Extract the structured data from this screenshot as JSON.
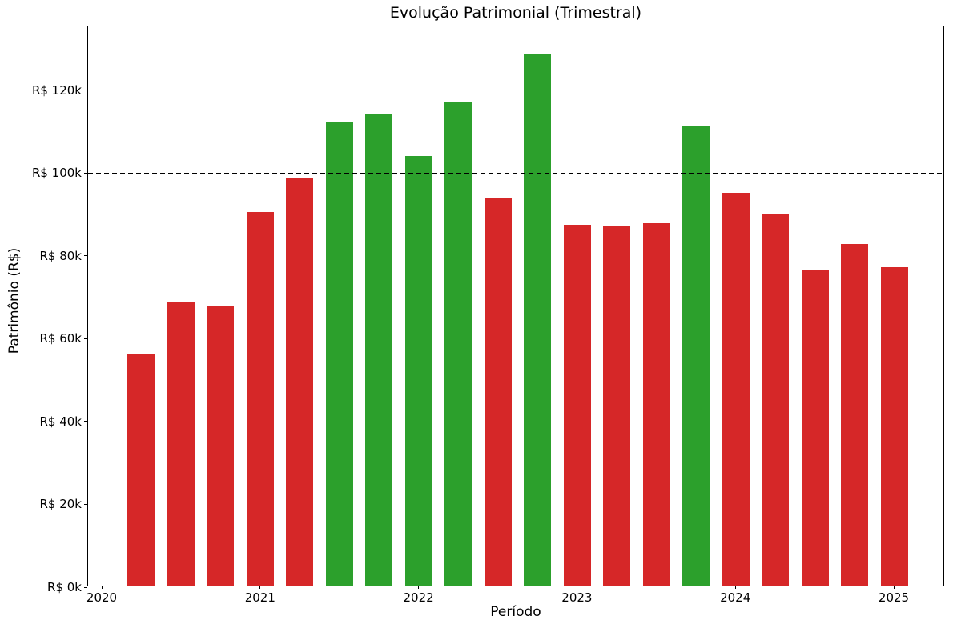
{
  "chart_data": {
    "type": "bar",
    "title": "Evolução Patrimonial (Trimestral)",
    "xlabel": "Período",
    "ylabel": "Patrimônio (R$)",
    "categories": [
      "2020-Q2",
      "2020-Q3",
      "2020-Q4",
      "2021-Q1",
      "2021-Q2",
      "2021-Q3",
      "2021-Q4",
      "2022-Q1",
      "2022-Q2",
      "2022-Q3",
      "2022-Q4",
      "2023-Q1",
      "2023-Q2",
      "2023-Q3",
      "2023-Q4",
      "2024-Q1",
      "2024-Q2",
      "2024-Q3",
      "2024-Q4",
      "2025-Q1"
    ],
    "values": [
      56000,
      68500,
      67600,
      90200,
      98500,
      111900,
      113700,
      103700,
      116600,
      93400,
      128400,
      87200,
      86800,
      87500,
      110800,
      94800,
      89600,
      76300,
      82400,
      76900
    ],
    "colors": {
      "above_threshold": "#2ca02c",
      "below_threshold": "#d62728"
    },
    "threshold_line": {
      "value": 100000,
      "color": "#000000",
      "style": "dashed"
    },
    "x_tick_labels": [
      "2020",
      "2021",
      "2022",
      "2023",
      "2024",
      "2025"
    ],
    "y_tick_labels": [
      "R$ 0k",
      "R$ 20k",
      "R$ 40k",
      "R$ 60k",
      "R$ 80k",
      "R$ 100k",
      "R$ 120k"
    ],
    "y_tick_values": [
      0,
      20000,
      40000,
      60000,
      80000,
      100000,
      120000
    ],
    "ylim": [
      0,
      135400
    ],
    "grid": false,
    "legend": null
  }
}
